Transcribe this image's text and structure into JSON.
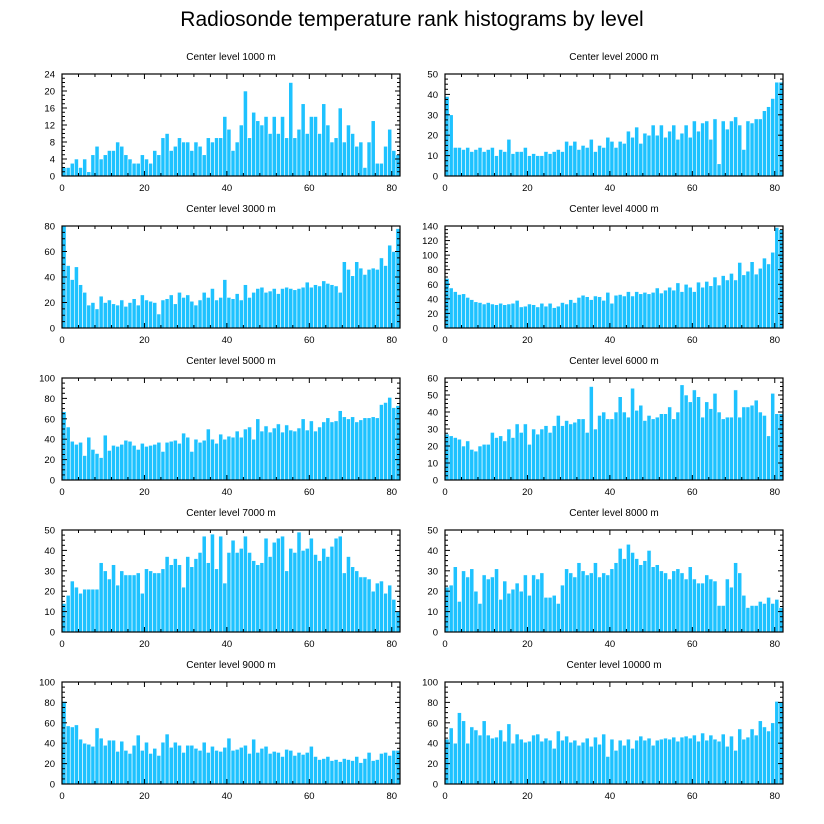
{
  "title": "Radiosonde temperature rank histograms by level",
  "bar_color": "#1ec2ff",
  "bar_edge_color": "#ffffff",
  "chart_data": [
    {
      "type": "bar",
      "title": "Center level 1000 m",
      "xlabel": "",
      "ylabel": "",
      "xlim": [
        0,
        82
      ],
      "ylim": [
        0,
        24
      ],
      "xticks": [
        0,
        20,
        40,
        60,
        80
      ],
      "yticks": [
        0,
        4,
        8,
        12,
        16,
        20,
        24
      ],
      "values": [
        2,
        2,
        3,
        4,
        2,
        4,
        1,
        5,
        7,
        4,
        5,
        6,
        6,
        8,
        7,
        5,
        4,
        3,
        3,
        5,
        4,
        3,
        6,
        5,
        9,
        10,
        6,
        7,
        9,
        8,
        8,
        6,
        8,
        7,
        5,
        9,
        8,
        9,
        9,
        14,
        11,
        6,
        8,
        12,
        20,
        9,
        15,
        13,
        12,
        14,
        10,
        14,
        10,
        14,
        9,
        22,
        9,
        11,
        17,
        10,
        14,
        14,
        10,
        17,
        12,
        8,
        9,
        16,
        8,
        12,
        10,
        7,
        8,
        2,
        8,
        13,
        3,
        3,
        7,
        11,
        6,
        5
      ]
    },
    {
      "type": "bar",
      "title": "Center level 2000 m",
      "xlabel": "",
      "ylabel": "",
      "xlim": [
        0,
        82
      ],
      "ylim": [
        0,
        50
      ],
      "xticks": [
        0,
        20,
        40,
        60,
        80
      ],
      "yticks": [
        0,
        10,
        20,
        30,
        40,
        50
      ],
      "values": [
        39,
        30,
        14,
        14,
        13,
        14,
        12,
        13,
        14,
        12,
        13,
        14,
        10,
        13,
        12,
        18,
        11,
        12,
        12,
        14,
        10,
        11,
        10,
        10,
        12,
        11,
        12,
        13,
        12,
        17,
        15,
        17,
        13,
        15,
        14,
        18,
        12,
        15,
        14,
        19,
        17,
        14,
        17,
        16,
        22,
        19,
        24,
        16,
        21,
        20,
        25,
        20,
        25,
        19,
        22,
        25,
        18,
        21,
        25,
        19,
        27,
        22,
        26,
        27,
        18,
        28,
        6,
        27,
        23,
        27,
        29,
        25,
        13,
        27,
        26,
        28,
        28,
        32,
        34,
        38,
        46,
        46
      ]
    },
    {
      "type": "bar",
      "title": "Center level 3000 m",
      "xlabel": "",
      "ylabel": "",
      "xlim": [
        0,
        82
      ],
      "ylim": [
        0,
        80
      ],
      "xticks": [
        0,
        20,
        40,
        60,
        80
      ],
      "yticks": [
        0,
        20,
        40,
        60,
        80
      ],
      "values": [
        80,
        49,
        38,
        48,
        34,
        28,
        18,
        20,
        15,
        25,
        20,
        22,
        19,
        18,
        22,
        17,
        20,
        23,
        18,
        26,
        22,
        21,
        20,
        11,
        22,
        23,
        26,
        19,
        28,
        24,
        26,
        21,
        18,
        22,
        28,
        24,
        31,
        22,
        24,
        38,
        24,
        23,
        27,
        22,
        34,
        24,
        28,
        31,
        32,
        28,
        29,
        31,
        27,
        31,
        32,
        31,
        30,
        31,
        32,
        36,
        32,
        34,
        33,
        37,
        35,
        34,
        33,
        28,
        52,
        46,
        41,
        52,
        47,
        42,
        46,
        47,
        46,
        55,
        49,
        65,
        60,
        78
      ]
    },
    {
      "type": "bar",
      "title": "Center level 4000 m",
      "xlabel": "",
      "ylabel": "",
      "xlim": [
        0,
        82
      ],
      "ylim": [
        0,
        140
      ],
      "xticks": [
        0,
        20,
        40,
        60,
        80
      ],
      "yticks": [
        0,
        20,
        40,
        60,
        80,
        100,
        120,
        140
      ],
      "values": [
        68,
        55,
        50,
        46,
        47,
        42,
        39,
        36,
        35,
        33,
        35,
        33,
        32,
        34,
        32,
        33,
        34,
        38,
        29,
        30,
        33,
        32,
        29,
        34,
        30,
        34,
        28,
        30,
        35,
        33,
        39,
        35,
        42,
        45,
        43,
        39,
        44,
        43,
        38,
        49,
        34,
        45,
        46,
        44,
        50,
        44,
        50,
        47,
        49,
        47,
        49,
        55,
        48,
        52,
        56,
        52,
        62,
        50,
        60,
        56,
        50,
        63,
        56,
        64,
        58,
        70,
        59,
        72,
        66,
        75,
        66,
        90,
        73,
        78,
        91,
        74,
        82,
        96,
        88,
        104,
        138,
        135
      ]
    },
    {
      "type": "bar",
      "title": "Center level 5000 m",
      "xlabel": "",
      "ylabel": "",
      "xlim": [
        0,
        82
      ],
      "ylim": [
        0,
        100
      ],
      "xticks": [
        0,
        20,
        40,
        60,
        80
      ],
      "yticks": [
        0,
        20,
        40,
        60,
        80,
        100
      ],
      "values": [
        67,
        52,
        38,
        35,
        37,
        24,
        42,
        30,
        26,
        22,
        44,
        29,
        34,
        33,
        35,
        39,
        38,
        34,
        30,
        36,
        33,
        34,
        35,
        37,
        28,
        37,
        38,
        39,
        36,
        46,
        42,
        28,
        40,
        37,
        39,
        50,
        40,
        36,
        45,
        40,
        43,
        42,
        48,
        42,
        50,
        52,
        40,
        60,
        48,
        53,
        47,
        51,
        55,
        47,
        54,
        49,
        48,
        51,
        60,
        49,
        58,
        48,
        52,
        57,
        61,
        57,
        58,
        68,
        62,
        60,
        62,
        57,
        59,
        61,
        61,
        62,
        61,
        74,
        76,
        81,
        71,
        73
      ]
    },
    {
      "type": "bar",
      "title": "Center level 6000 m",
      "xlabel": "",
      "ylabel": "",
      "xlim": [
        0,
        82
      ],
      "ylim": [
        0,
        60
      ],
      "xticks": [
        0,
        20,
        40,
        60,
        80
      ],
      "yticks": [
        0,
        10,
        20,
        30,
        40,
        50,
        60
      ],
      "values": [
        27,
        26,
        25,
        24,
        20,
        23,
        18,
        17,
        20,
        21,
        21,
        28,
        25,
        26,
        23,
        30,
        25,
        33,
        28,
        33,
        21,
        30,
        27,
        30,
        32,
        28,
        32,
        38,
        32,
        35,
        33,
        34,
        36,
        36,
        28,
        55,
        30,
        38,
        40,
        36,
        36,
        40,
        49,
        40,
        37,
        54,
        41,
        44,
        35,
        38,
        36,
        37,
        39,
        39,
        43,
        36,
        40,
        56,
        50,
        46,
        53,
        49,
        37,
        46,
        42,
        51,
        40,
        36,
        37,
        37,
        53,
        37,
        43,
        43,
        44,
        47,
        40,
        38,
        26,
        51,
        39,
        39
      ]
    },
    {
      "type": "bar",
      "title": "Center level 7000 m",
      "xlabel": "",
      "ylabel": "",
      "xlim": [
        0,
        82
      ],
      "ylim": [
        0,
        50
      ],
      "xticks": [
        0,
        20,
        40,
        60,
        80
      ],
      "yticks": [
        0,
        10,
        20,
        30,
        40,
        50
      ],
      "values": [
        14,
        18,
        25,
        22,
        19,
        21,
        21,
        21,
        21,
        34,
        30,
        26,
        33,
        23,
        30,
        28,
        28,
        28,
        29,
        19,
        31,
        30,
        29,
        29,
        31,
        37,
        33,
        36,
        33,
        22,
        37,
        32,
        36,
        39,
        47,
        34,
        48,
        31,
        47,
        24,
        39,
        45,
        39,
        41,
        47,
        39,
        35,
        33,
        34,
        46,
        37,
        44,
        46,
        47,
        30,
        41,
        39,
        49,
        40,
        41,
        46,
        38,
        35,
        41,
        37,
        42,
        46,
        47,
        29,
        37,
        32,
        30,
        27,
        27,
        26,
        20,
        24,
        25,
        19,
        23,
        16,
        10
      ]
    },
    {
      "type": "bar",
      "title": "Center level 8000 m",
      "xlabel": "",
      "ylabel": "",
      "xlim": [
        0,
        82
      ],
      "ylim": [
        0,
        50
      ],
      "xticks": [
        0,
        20,
        40,
        60,
        80
      ],
      "yticks": [
        0,
        10,
        20,
        30,
        40,
        50
      ],
      "values": [
        22,
        23,
        32,
        15,
        30,
        27,
        31,
        20,
        14,
        28,
        26,
        27,
        31,
        16,
        25,
        19,
        21,
        24,
        20,
        28,
        18,
        28,
        26,
        29,
        17,
        17,
        18,
        14,
        23,
        31,
        29,
        27,
        34,
        30,
        28,
        29,
        34,
        27,
        29,
        28,
        31,
        34,
        41,
        36,
        43,
        39,
        36,
        33,
        35,
        40,
        32,
        33,
        30,
        29,
        26,
        30,
        31,
        29,
        26,
        32,
        26,
        24,
        24,
        28,
        26,
        25,
        13,
        13,
        26,
        22,
        34,
        29,
        18,
        12,
        13,
        13,
        15,
        14,
        17,
        14,
        16,
        12
      ]
    },
    {
      "type": "bar",
      "title": "Center level 9000 m",
      "xlabel": "",
      "ylabel": "",
      "xlim": [
        0,
        82
      ],
      "ylim": [
        0,
        100
      ],
      "xticks": [
        0,
        20,
        40,
        60,
        80
      ],
      "yticks": [
        0,
        20,
        40,
        60,
        80,
        100
      ],
      "values": [
        81,
        57,
        56,
        58,
        44,
        40,
        39,
        37,
        55,
        45,
        38,
        43,
        43,
        32,
        42,
        33,
        30,
        38,
        48,
        33,
        41,
        30,
        35,
        28,
        41,
        49,
        36,
        41,
        38,
        31,
        38,
        38,
        35,
        33,
        41,
        31,
        37,
        33,
        32,
        36,
        45,
        33,
        34,
        36,
        38,
        30,
        44,
        31,
        35,
        37,
        30,
        32,
        31,
        27,
        34,
        33,
        28,
        31,
        29,
        31,
        37,
        27,
        24,
        25,
        27,
        23,
        24,
        22,
        25,
        24,
        23,
        27,
        21,
        25,
        31,
        23,
        24,
        30,
        31,
        28,
        33,
        33
      ]
    },
    {
      "type": "bar",
      "title": "Center level 10000 m",
      "xlabel": "",
      "ylabel": "",
      "xlim": [
        0,
        82
      ],
      "ylim": [
        0,
        100
      ],
      "xticks": [
        0,
        20,
        40,
        60,
        80
      ],
      "yticks": [
        0,
        20,
        40,
        60,
        80,
        100
      ],
      "values": [
        44,
        55,
        40,
        70,
        62,
        40,
        56,
        53,
        48,
        62,
        48,
        45,
        46,
        53,
        42,
        59,
        40,
        49,
        44,
        41,
        42,
        48,
        49,
        42,
        45,
        43,
        35,
        52,
        43,
        47,
        41,
        43,
        38,
        41,
        45,
        37,
        46,
        39,
        49,
        27,
        44,
        33,
        43,
        38,
        44,
        35,
        43,
        47,
        43,
        45,
        38,
        43,
        44,
        45,
        44,
        46,
        42,
        46,
        47,
        45,
        48,
        42,
        50,
        43,
        48,
        44,
        42,
        49,
        37,
        47,
        33,
        54,
        44,
        46,
        54,
        48,
        62,
        56,
        52,
        60,
        81,
        80
      ]
    }
  ]
}
